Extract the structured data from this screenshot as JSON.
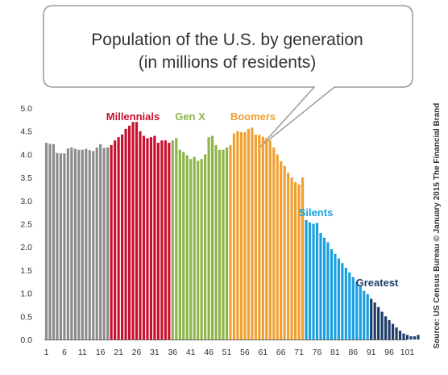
{
  "chart_data": {
    "type": "bar",
    "title": "Population of the U.S. by generation",
    "subtitle": "(in millions of residents)",
    "source": "Source: US Census Bureau © January 2015 The Financial Brand",
    "ylim": [
      0,
      5.0
    ],
    "yticks": [
      "0.0",
      "0.5",
      "1.0",
      "1.5",
      "2.0",
      "2.5",
      "3.0",
      "3.5",
      "4.0",
      "4.5",
      "5.0"
    ],
    "xticks": [
      "1",
      "6",
      "11",
      "16",
      "21",
      "26",
      "31",
      "36",
      "41",
      "46",
      "51",
      "56",
      "61",
      "66",
      "71",
      "76",
      "81",
      "86",
      "91",
      "96",
      "101"
    ],
    "grid": false,
    "series": [
      {
        "name": "",
        "color": "#8c8c8c",
        "start": 1,
        "values": [
          4.25,
          4.23,
          4.22,
          4.03,
          4.02,
          4.02,
          4.13,
          4.15,
          4.12,
          4.1,
          4.1,
          4.12,
          4.09,
          4.07,
          4.15,
          4.22,
          4.14,
          4.15
        ]
      },
      {
        "name": "Millennials",
        "color": "#c8102e",
        "start": 19,
        "values": [
          4.2,
          4.3,
          4.37,
          4.43,
          4.55,
          4.62,
          4.7,
          4.7,
          4.5,
          4.4,
          4.35,
          4.37,
          4.4,
          4.25,
          4.3,
          4.3,
          4.25
        ]
      },
      {
        "name": "Gen X",
        "color": "#8db54a",
        "start": 36,
        "values": [
          4.3,
          4.35,
          4.1,
          4.05,
          3.98,
          3.9,
          3.95,
          3.86,
          3.9,
          4.0,
          4.37,
          4.4,
          4.2,
          4.1,
          4.1,
          4.15
        ]
      },
      {
        "name": "Boomers",
        "color": "#f0a030",
        "start": 52,
        "values": [
          4.2,
          4.45,
          4.5,
          4.48,
          4.48,
          4.55,
          4.58,
          4.43,
          4.42,
          4.38,
          4.35,
          4.3,
          4.15,
          4.0,
          3.85,
          3.75,
          3.6,
          3.5,
          3.4,
          3.35,
          3.5
        ]
      },
      {
        "name": "Silents",
        "color": "#1aa0e0",
        "start": 73,
        "values": [
          2.58,
          2.53,
          2.5,
          2.52,
          2.3,
          2.2,
          2.1,
          1.95,
          1.85,
          1.75,
          1.65,
          1.55,
          1.45,
          1.35,
          1.25,
          1.15,
          1.05,
          0.98
        ]
      },
      {
        "name": "Greatest",
        "color": "#1f3d6b",
        "start": 91,
        "values": [
          0.88,
          0.8,
          0.7,
          0.6,
          0.5,
          0.42,
          0.34,
          0.26,
          0.19,
          0.13,
          0.1,
          0.07,
          0.07,
          0.1
        ]
      }
    ]
  }
}
